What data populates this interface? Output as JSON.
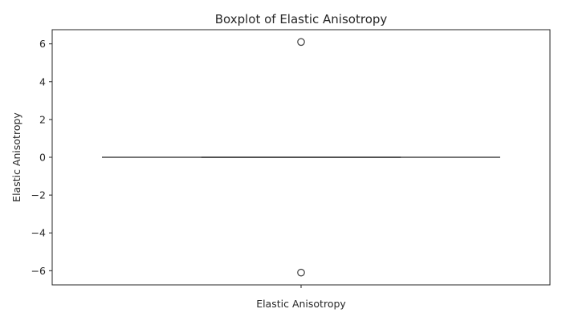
{
  "chart_data": {
    "type": "box",
    "title": "Boxplot of Elastic Anisotropy",
    "xlabel": "Elastic Anisotropy",
    "ylabel": "Elastic Anisotropy",
    "categories": [
      ""
    ],
    "ylim": [
      -6.75,
      6.75
    ],
    "yticks": [
      -6,
      -4,
      -2,
      0,
      2,
      4,
      6
    ],
    "ytick_labels": [
      "−6",
      "−4",
      "−2",
      "0",
      "2",
      "4",
      "6"
    ],
    "series": [
      {
        "whisker_low": 0,
        "q1": 0,
        "median": 0,
        "q3": 0,
        "whisker_high": 0,
        "outliers": [
          6.1,
          -6.1
        ]
      }
    ],
    "grid": false,
    "legend": "none",
    "colors": {
      "box_line": "#3f3f3f",
      "axis": "#262626",
      "outlier_edge": "#3f3f3f"
    }
  }
}
